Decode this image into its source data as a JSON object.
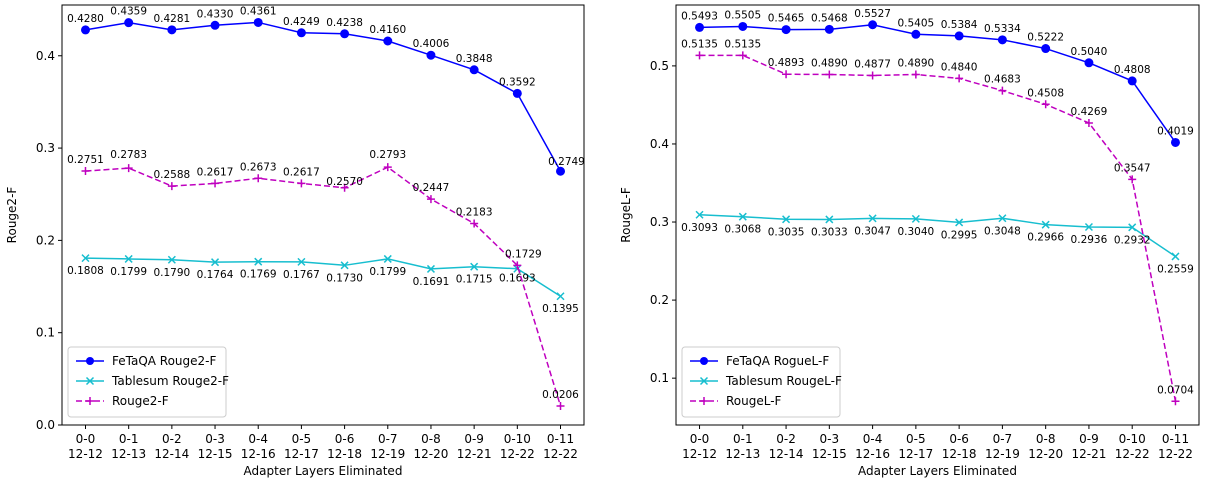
{
  "chart_data": [
    {
      "type": "line",
      "xlabel": "Adapter Layers Eliminated",
      "ylabel": "Rouge2-F",
      "categories": [
        "0-0\n12-12",
        "0-1\n12-13",
        "0-2\n12-14",
        "0-3\n12-15",
        "0-4\n12-16",
        "0-5\n12-17",
        "0-6\n12-18",
        "0-7\n12-19",
        "0-8\n12-20",
        "0-9\n12-21",
        "0-10\n12-22",
        "0-11\n12-22"
      ],
      "ylim": [
        0.0,
        0.455
      ],
      "yticks": [
        0.0,
        0.1,
        0.2,
        0.3,
        0.4
      ],
      "yticklabels": [
        "0.0",
        "0.1",
        "0.2",
        "0.3",
        "0.4"
      ],
      "grid": false,
      "legend_position": "lower-left",
      "series": [
        {
          "name": "FeTaQA Rouge2-F",
          "color": "#0000ff",
          "marker": "circle",
          "linestyle": "solid",
          "values": [
            0.428,
            0.4359,
            0.4281,
            0.433,
            0.4361,
            0.4249,
            0.4238,
            0.416,
            0.4006,
            0.3848,
            0.3592,
            0.2749
          ],
          "labels": [
            "0.4280",
            "0.4359",
            "0.4281",
            "0.4330",
            "0.4361",
            "0.4249",
            "0.4238",
            "0.4160",
            "0.4006",
            "0.3848",
            "0.3592",
            "0.2749"
          ]
        },
        {
          "name": "Tablesum Rouge2-F",
          "color": "#17becf",
          "marker": "x",
          "linestyle": "solid",
          "values": [
            0.1808,
            0.1799,
            0.179,
            0.1764,
            0.1769,
            0.1767,
            0.173,
            0.1799,
            0.1691,
            0.1715,
            0.1693,
            0.1395
          ],
          "labels": [
            "0.1808",
            "0.1799",
            "0.1790",
            "0.1764",
            "0.1769",
            "0.1767",
            "0.1730",
            "0.1799",
            "0.1691",
            "0.1715",
            "0.1693",
            "0.1395"
          ]
        },
        {
          "name": "Rouge2-F",
          "color": "#bf00bf",
          "marker": "plus",
          "linestyle": "dashed",
          "values": [
            0.2751,
            0.2783,
            0.2588,
            0.2617,
            0.2673,
            0.2617,
            0.257,
            0.2793,
            0.2447,
            0.2183,
            0.1729,
            0.0206
          ],
          "labels": [
            "0.2751",
            "0.2783",
            "0.2588",
            "0.2617",
            "0.2673",
            "0.2617",
            "0.2570",
            "0.2793",
            "0.2447",
            "0.2183",
            "0.1729",
            "0.0206"
          ]
        }
      ]
    },
    {
      "type": "line",
      "xlabel": "Adapter Layers Eliminated",
      "ylabel": "RougeL-F",
      "categories": [
        "0-0\n12-12",
        "0-1\n12-13",
        "0-2\n12-14",
        "0-3\n12-15",
        "0-4\n12-16",
        "0-5\n12-17",
        "0-6\n12-18",
        "0-7\n12-19",
        "0-8\n12-20",
        "0-9\n12-21",
        "0-10\n12-22",
        "0-11\n12-22"
      ],
      "ylim": [
        0.04,
        0.578
      ],
      "yticks": [
        0.1,
        0.2,
        0.3,
        0.4,
        0.5
      ],
      "yticklabels": [
        "0.1",
        "0.2",
        "0.3",
        "0.4",
        "0.5"
      ],
      "grid": false,
      "legend_position": "lower-left",
      "series": [
        {
          "name": "FeTaQA RogueL-F",
          "color": "#0000ff",
          "marker": "circle",
          "linestyle": "solid",
          "values": [
            0.5493,
            0.5505,
            0.5465,
            0.5468,
            0.5527,
            0.5405,
            0.5384,
            0.5334,
            0.5222,
            0.504,
            0.4808,
            0.4019
          ],
          "labels": [
            "0.5493",
            "0.5505",
            "0.5465",
            "0.5468",
            "0.5527",
            "0.5405",
            "0.5384",
            "0.5334",
            "0.5222",
            "0.5040",
            "0.4808",
            "0.4019"
          ]
        },
        {
          "name": "Tablesum RougeL-F",
          "color": "#17becf",
          "marker": "x",
          "linestyle": "solid",
          "values": [
            0.3093,
            0.3068,
            0.3035,
            0.3033,
            0.3047,
            0.304,
            0.2995,
            0.3048,
            0.2966,
            0.2936,
            0.2932,
            0.2559
          ],
          "labels": [
            "0.3093",
            "0.3068",
            "0.3035",
            "0.3033",
            "0.3047",
            "0.3040",
            "0.2995",
            "0.3048",
            "0.2966",
            "0.2936",
            "0.2932",
            "0.2559"
          ]
        },
        {
          "name": "RougeL-F",
          "color": "#bf00bf",
          "marker": "plus",
          "linestyle": "dashed",
          "values": [
            0.5135,
            0.5135,
            0.4893,
            0.489,
            0.4877,
            0.489,
            0.484,
            0.4683,
            0.4508,
            0.4269,
            0.3547,
            0.0704
          ],
          "labels": [
            "0.5135",
            "0.5135",
            "0.4893",
            "0.4890",
            "0.4877",
            "0.4890",
            "0.4840",
            "0.4683",
            "0.4508",
            "0.4269",
            "0.3547",
            "0.0704"
          ]
        }
      ]
    }
  ]
}
